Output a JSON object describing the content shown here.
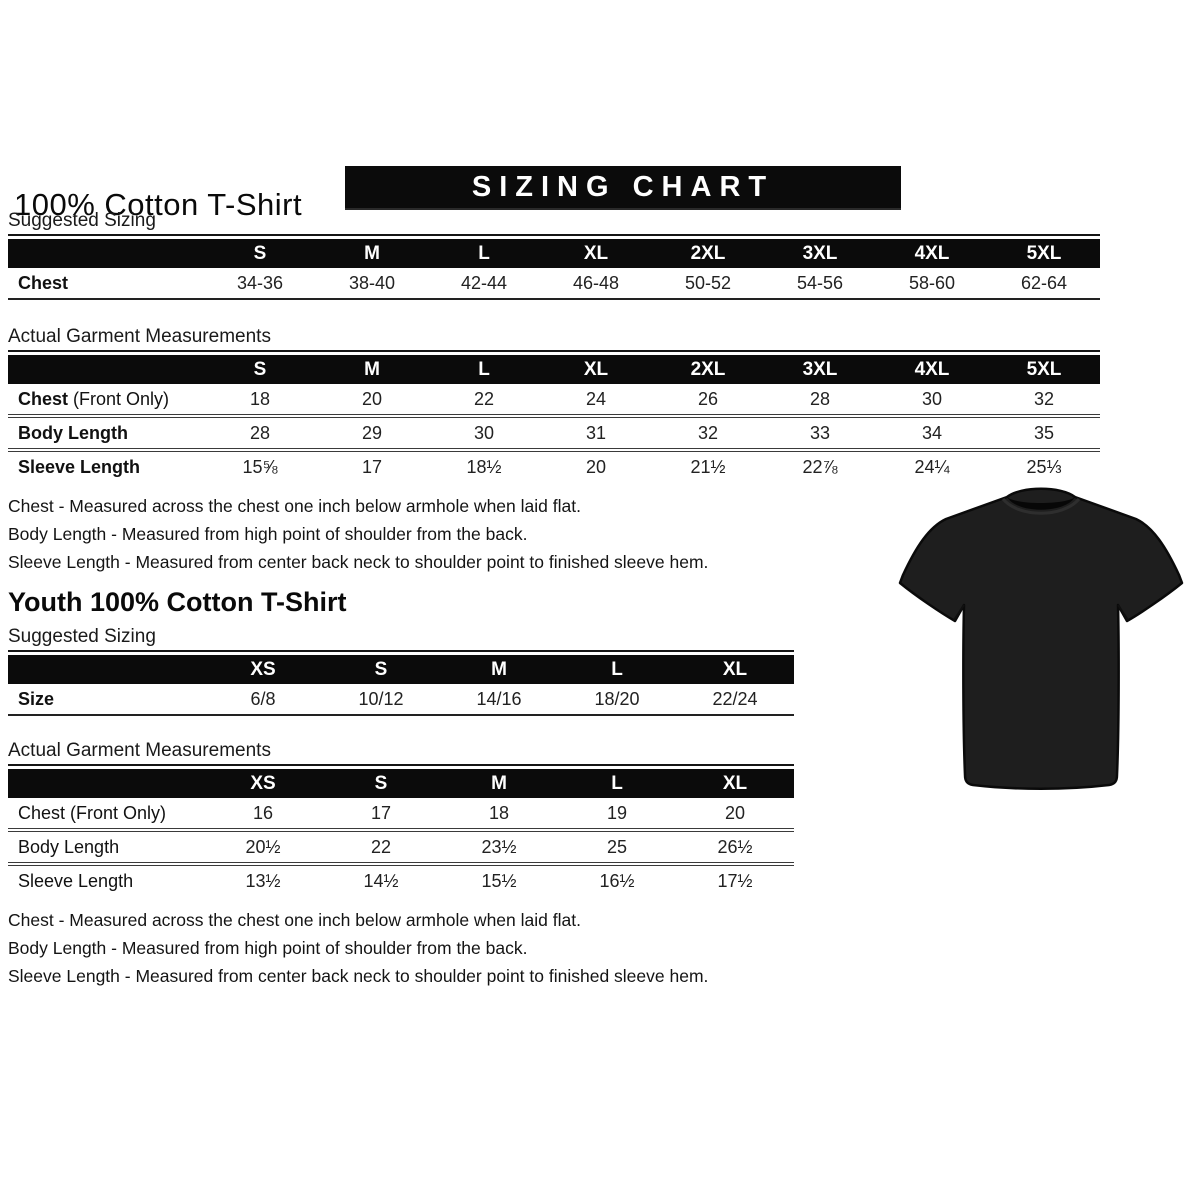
{
  "adult": {
    "title": "100% Cotton T-Shirt",
    "banner": "SIZING CHART",
    "suggested": {
      "label": "Suggested Sizing",
      "columns": [
        "S",
        "M",
        "L",
        "XL",
        "2XL",
        "3XL",
        "4XL",
        "5XL"
      ],
      "rows": [
        {
          "label": "Chest",
          "values": [
            "34-36",
            "38-40",
            "42-44",
            "46-48",
            "50-52",
            "54-56",
            "58-60",
            "62-64"
          ]
        }
      ]
    },
    "actual": {
      "label": "Actual Garment Measurements",
      "columns": [
        "S",
        "M",
        "L",
        "XL",
        "2XL",
        "3XL",
        "4XL",
        "5XL"
      ],
      "rows": [
        {
          "label": "Chest",
          "label_suffix": " (Front Only)",
          "values": [
            "18",
            "20",
            "22",
            "24",
            "26",
            "28",
            "30",
            "32"
          ]
        },
        {
          "label": "Body Length",
          "values": [
            "28",
            "29",
            "30",
            "31",
            "32",
            "33",
            "34",
            "35"
          ]
        },
        {
          "label": "Sleeve Length",
          "values": [
            "15⅝",
            "17",
            "18½",
            "20",
            "21½",
            "22⅞",
            "24¼",
            "25⅓"
          ]
        }
      ]
    },
    "notes": [
      "Chest - Measured across the chest one inch below armhole when laid flat.",
      "Body Length - Measured from high point of shoulder from the back.",
      "Sleeve Length - Measured from center back neck to shoulder point to finished sleeve hem."
    ]
  },
  "youth": {
    "title": "Youth 100% Cotton T-Shirt",
    "suggested": {
      "label": "Suggested Sizing",
      "columns": [
        "XS",
        "S",
        "M",
        "L",
        "XL"
      ],
      "rows": [
        {
          "label": "Size",
          "values": [
            "6/8",
            "10/12",
            "14/16",
            "18/20",
            "22/24"
          ]
        }
      ]
    },
    "actual": {
      "label": "Actual Garment Measurements",
      "columns": [
        "XS",
        "S",
        "M",
        "L",
        "XL"
      ],
      "rows": [
        {
          "label": "Chest (Front Only)",
          "values": [
            "16",
            "17",
            "18",
            "19",
            "20"
          ]
        },
        {
          "label": "Body Length",
          "values": [
            "20½",
            "22",
            "23½",
            "25",
            "26½"
          ]
        },
        {
          "label": "Sleeve Length",
          "values": [
            "13½",
            "14½",
            "15½",
            "16½",
            "17½"
          ]
        }
      ]
    },
    "notes": [
      "Chest - Measured across the chest one inch below armhole when laid flat.",
      "Body Length - Measured from high point of shoulder from the back.",
      "Sleeve Length - Measured from center back neck to shoulder point to finished sleeve hem."
    ]
  },
  "product_image": {
    "name": "black short-sleeve crew-neck t-shirt, flat lay front view",
    "shirt_color": "#1e1e1e",
    "edge_color": "#0a0a0a"
  }
}
